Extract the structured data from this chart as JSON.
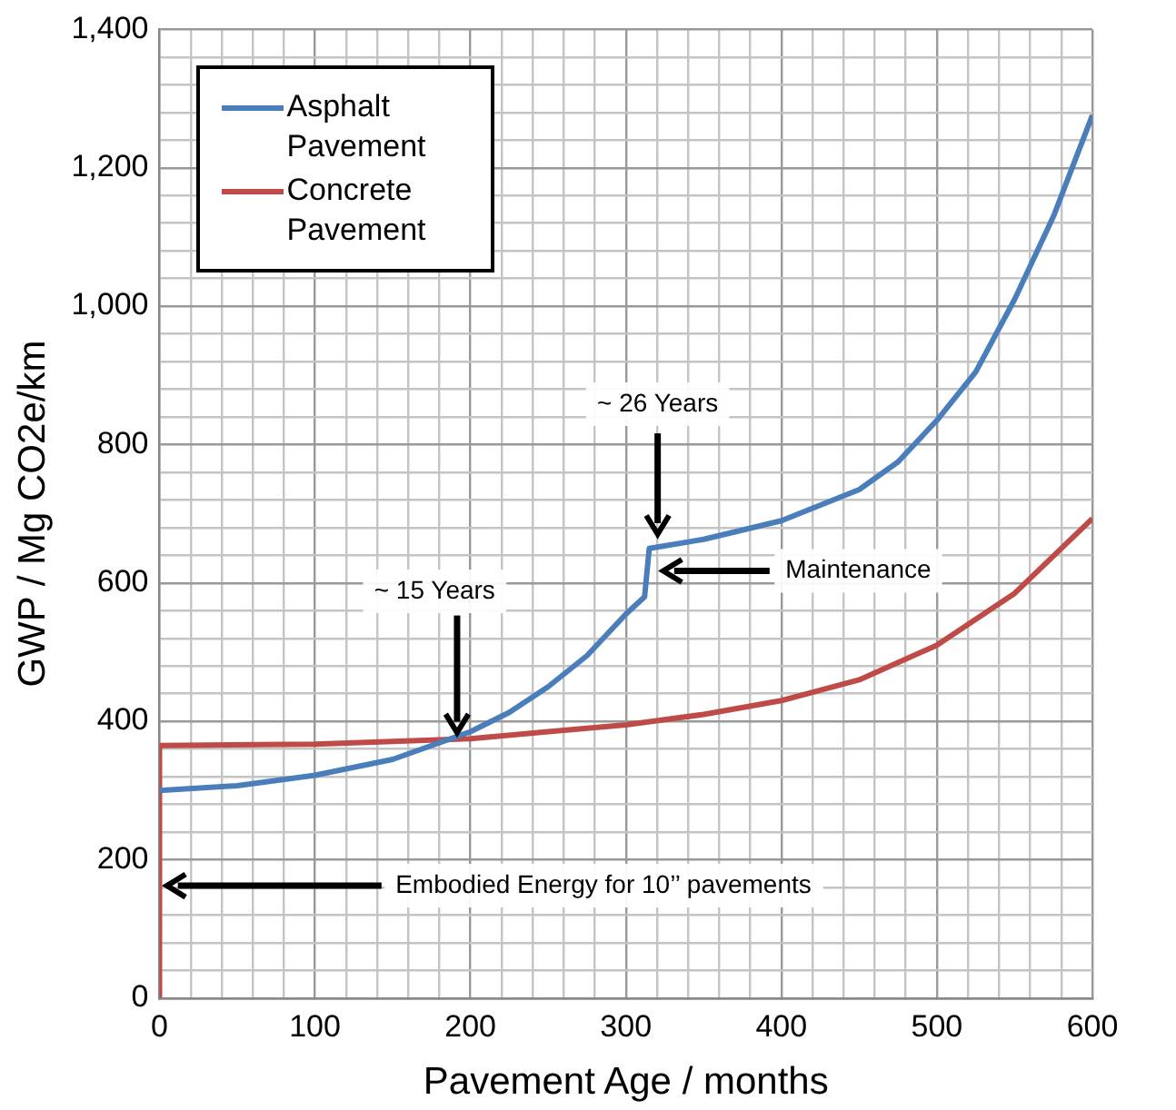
{
  "chart_data": {
    "type": "line",
    "xlabel": "Pavement Age / months",
    "ylabel": "GWP / Mg CO2e/km",
    "xlim": [
      0,
      600
    ],
    "ylim": [
      0,
      1400
    ],
    "xticks": [
      0,
      {
        "value": 20,
        "label": null
      },
      {
        "value": 40,
        "label": null
      },
      {
        "value": 60,
        "label": null
      },
      {
        "value": 80,
        "label": null
      },
      100,
      {
        "value": 120,
        "label": null
      },
      {
        "value": 140,
        "label": null
      },
      {
        "value": 160,
        "label": null
      },
      {
        "value": 180,
        "label": null
      },
      200,
      {
        "value": 220,
        "label": null
      },
      {
        "value": 240,
        "label": null
      },
      {
        "value": 260,
        "label": null
      },
      {
        "value": 280,
        "label": null
      },
      300,
      {
        "value": 320,
        "label": null
      },
      {
        "value": 340,
        "label": null
      },
      {
        "value": 360,
        "label": null
      },
      {
        "value": 380,
        "label": null
      },
      400,
      {
        "value": 420,
        "label": null
      },
      {
        "value": 440,
        "label": null
      },
      {
        "value": 460,
        "label": null
      },
      {
        "value": 480,
        "label": null
      },
      500,
      {
        "value": 520,
        "label": null
      },
      {
        "value": 540,
        "label": null
      },
      {
        "value": 560,
        "label": null
      },
      {
        "value": 580,
        "label": null
      },
      600
    ],
    "yticks": [
      0,
      {
        "value": 40,
        "label": null
      },
      {
        "value": 80,
        "label": null
      },
      {
        "value": 120,
        "label": null
      },
      {
        "value": 160,
        "label": null
      },
      200,
      {
        "value": 240,
        "label": null
      },
      {
        "value": 280,
        "label": null
      },
      {
        "value": 320,
        "label": null
      },
      {
        "value": 360,
        "label": null
      },
      400,
      {
        "value": 440,
        "label": null
      },
      {
        "value": 480,
        "label": null
      },
      {
        "value": 520,
        "label": null
      },
      {
        "value": 560,
        "label": null
      },
      600,
      {
        "value": 640,
        "label": null
      },
      {
        "value": 680,
        "label": null
      },
      {
        "value": 720,
        "label": null
      },
      {
        "value": 760,
        "label": null
      },
      800,
      {
        "value": 840,
        "label": null
      },
      {
        "value": 880,
        "label": null
      },
      {
        "value": 920,
        "label": null
      },
      {
        "value": 960,
        "label": null
      },
      {
        "value": 1000,
        "label": "1,000"
      },
      {
        "value": 1040,
        "label": null
      },
      {
        "value": 1080,
        "label": null
      },
      {
        "value": 1120,
        "label": null
      },
      {
        "value": 1160,
        "label": null
      },
      {
        "value": 1200,
        "label": "1,200"
      },
      {
        "value": 1240,
        "label": null
      },
      {
        "value": 1280,
        "label": null
      },
      {
        "value": 1320,
        "label": null
      },
      {
        "value": 1360,
        "label": null
      },
      {
        "value": 1400,
        "label": "1,400"
      }
    ],
    "grid": true,
    "legend": "top left",
    "marker": "none",
    "line_style": "solid",
    "series": [
      {
        "name": "Asphalt Pavement",
        "color": "#4a7ebb",
        "x": [
          0,
          50,
          100,
          150,
          175,
          200,
          225,
          250,
          275,
          300,
          312,
          315,
          350,
          400,
          450,
          475,
          500,
          525,
          550,
          575,
          600
        ],
        "values": [
          300,
          307,
          322,
          345,
          365,
          385,
          413,
          450,
          495,
          555,
          580,
          650,
          663,
          690,
          735,
          775,
          835,
          905,
          1010,
          1130,
          1276
        ]
      },
      {
        "name": "Concrete Pavement",
        "color": "#be4b48",
        "x": [
          0,
          0,
          100,
          200,
          250,
          300,
          350,
          400,
          450,
          500,
          550,
          600
        ],
        "values": [
          0,
          365,
          367,
          375,
          385,
          395,
          410,
          430,
          460,
          510,
          585,
          693
        ]
      }
    ],
    "annotations": [
      "~ 26 Years",
      "~ 15 Years",
      "Maintenance",
      "Embodied Energy for 10’’ pavements"
    ]
  }
}
